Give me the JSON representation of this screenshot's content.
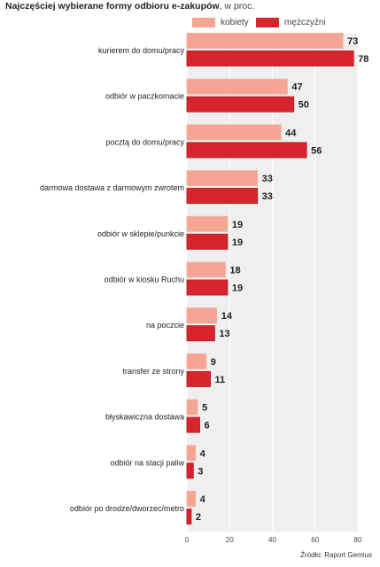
{
  "title": {
    "bold": "Najczęściej wybierane formy odbioru e-zakupów",
    "rest": ", w proc."
  },
  "legend": [
    {
      "label": "kobiety",
      "color": "#f6a493"
    },
    {
      "label": "mężczyźni",
      "color": "#d8242c"
    }
  ],
  "source": "Źródło: Raport Gemius",
  "chart_data": {
    "type": "bar",
    "orientation": "horizontal",
    "categories": [
      "kurierem do domu/pracy",
      "odbiór w paczkomacie",
      "pocztą do domu/pracy",
      "darmowa dostawa z darmowym zwrotem",
      "odbiór w sklepie/punkcie",
      "odbiór w kiosku Ruchu",
      "na poczcie",
      "transfer ze strony",
      "błyskawiczna dostawa",
      "odbiór na stacji paliw",
      "odbiór po drodze/dworzec/metro"
    ],
    "series": [
      {
        "name": "kobiety",
        "values": [
          73,
          47,
          44,
          33,
          19,
          18,
          14,
          9,
          5,
          4,
          4
        ]
      },
      {
        "name": "mężczyźni",
        "values": [
          78,
          50,
          56,
          33,
          19,
          19,
          13,
          11,
          6,
          3,
          2
        ]
      }
    ],
    "xlim": [
      0,
      80
    ],
    "xticks": [
      "0",
      "20",
      "40",
      "60",
      "80"
    ],
    "title": "Najczęściej wybierane formy odbioru e-zakupów, w proc.",
    "legend_position": "top-right"
  }
}
